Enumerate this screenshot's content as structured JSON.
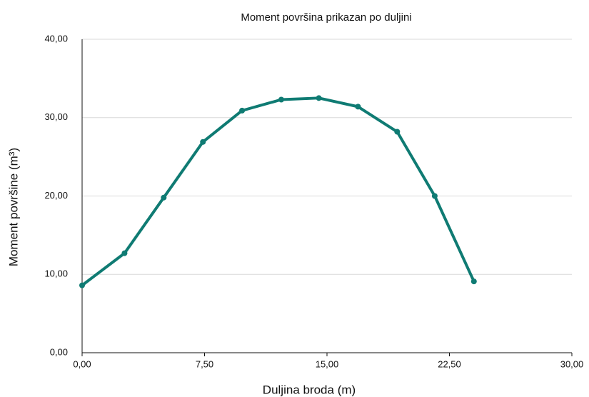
{
  "chart_data": {
    "type": "line",
    "title": "Moment površina prikazan po duljini",
    "x_label": "Duljina broda (m)",
    "y_label": "Moment površine (m³)",
    "x": [
      0,
      2.6,
      5,
      7.4,
      9.8,
      12.2,
      14.5,
      16.9,
      19.3,
      21.6,
      24.0
    ],
    "values": [
      8.6,
      12.7,
      19.8,
      26.9,
      30.9,
      32.3,
      32.5,
      31.4,
      28.2,
      20.0,
      9.1
    ],
    "color": "#0f7b73",
    "xlim": [
      0,
      30
    ],
    "xticks": [
      {
        "value": 0,
        "label": "0,00"
      },
      {
        "value": 7.5,
        "label": "7,50"
      },
      {
        "value": 15,
        "label": "15,00"
      },
      {
        "value": 22.5,
        "label": "22,50"
      },
      {
        "value": 30,
        "label": "30,00"
      }
    ],
    "ylim": [
      0,
      40
    ],
    "yticks": [
      {
        "value": 0,
        "label": "0,00"
      },
      {
        "value": 10,
        "label": "10,00"
      },
      {
        "value": 20,
        "label": "20,00"
      },
      {
        "value": 30,
        "label": "30,00"
      },
      {
        "value": 40,
        "label": "40,00"
      }
    ],
    "grid": true
  }
}
